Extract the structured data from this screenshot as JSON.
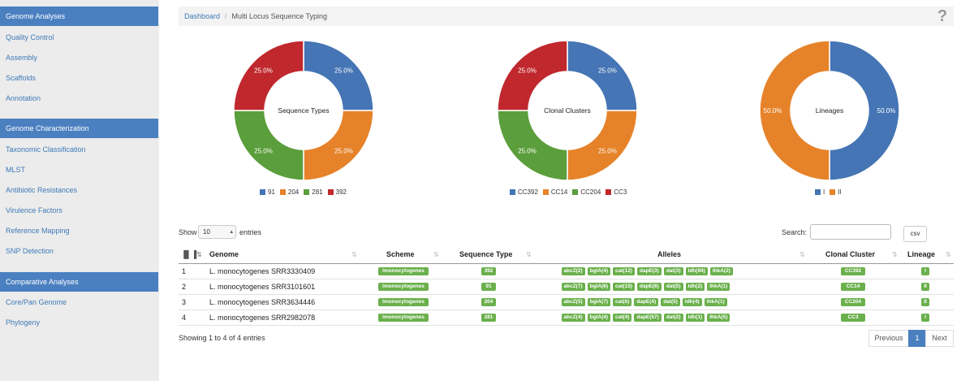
{
  "sidebar": {
    "sections": [
      {
        "title": "Genome Analyses",
        "items": [
          "Quality Control",
          "Assembly",
          "Scaffolds",
          "Annotation"
        ]
      },
      {
        "title": "Genome Characterization",
        "items": [
          "Taxonomic Classification",
          "MLST",
          "Antibiotic Resistances",
          "Virulence Factors",
          "Reference Mapping",
          "SNP Detection"
        ]
      },
      {
        "title": "Comparative Analyses",
        "items": [
          "Core/Pan Genome",
          "Phylogeny"
        ]
      }
    ]
  },
  "breadcrumb": {
    "home": "Dashboard",
    "separator": "/",
    "current": "Multi Locus Sequence Typing"
  },
  "help_icon": "question-mark-icon",
  "colors": {
    "blue": "#4575b4",
    "orange": "#e6832a",
    "green": "#5b9e3c",
    "red": "#c0282e",
    "accent": "#4a80c0",
    "badge": "#6ab04c"
  },
  "chart_data": [
    {
      "type": "pie",
      "title": "Sequence Types",
      "labels": [
        "91",
        "204",
        "281",
        "392"
      ],
      "values": [
        25.0,
        25.0,
        25.0,
        25.0
      ],
      "value_labels": [
        "25.0%",
        "25.0%",
        "25.0%",
        "25.0%"
      ],
      "colors": [
        "#4575b4",
        "#e6832a",
        "#5b9e3c",
        "#c0282e"
      ],
      "legend": "bottom"
    },
    {
      "type": "pie",
      "title": "Clonal Clusters",
      "labels": [
        "CC392",
        "CC14",
        "CC204",
        "CC3"
      ],
      "values": [
        25.0,
        25.0,
        25.0,
        25.0
      ],
      "value_labels": [
        "25.0%",
        "25.0%",
        "25.0%",
        "25.0%"
      ],
      "colors": [
        "#4575b4",
        "#e6832a",
        "#5b9e3c",
        "#c0282e"
      ],
      "legend": "bottom"
    },
    {
      "type": "pie",
      "title": "Lineages",
      "labels": [
        "I",
        "II"
      ],
      "values": [
        50.0,
        50.0
      ],
      "value_labels": [
        "50.0%",
        "50.0%"
      ],
      "colors": [
        "#4575b4",
        "#e6832a"
      ],
      "legend": "bottom"
    }
  ],
  "table_controls": {
    "show_label": "Show",
    "length_value": "10",
    "entries_label": "entries",
    "search_label": "Search:",
    "search_value": "",
    "csv_label": "csv"
  },
  "table": {
    "columns": [
      "Genome",
      "Scheme",
      "Sequence Type",
      "Alleles",
      "Clonal Cluster",
      "Lineage"
    ],
    "rows": [
      {
        "index": "1",
        "genome": "L. monocytogenes SRR3330409",
        "scheme": "lmonocytogenes",
        "st": "392",
        "alleles": [
          "abcZ(2)",
          "bglA(4)",
          "cat(12)",
          "dapE(3)",
          "dat(3)",
          "ldh(94)",
          "lhkA(2)"
        ],
        "cc": "CC392",
        "lineage": "I"
      },
      {
        "index": "2",
        "genome": "L. monocytogenes SRR3101601",
        "scheme": "lmonocytogenes",
        "st": "91",
        "alleles": [
          "abcZ(7)",
          "bglA(6)",
          "cat(15)",
          "dapE(6)",
          "dat(5)",
          "ldh(2)",
          "lhkA(1)"
        ],
        "cc": "CC14",
        "lineage": "II"
      },
      {
        "index": "3",
        "genome": "L. monocytogenes SRR3634446",
        "scheme": "lmonocytogenes",
        "st": "204",
        "alleles": [
          "abcZ(5)",
          "bglA(7)",
          "cat(6)",
          "dapE(4)",
          "dat(5)",
          "ldh(4)",
          "lhkA(1)"
        ],
        "cc": "CC204",
        "lineage": "II"
      },
      {
        "index": "4",
        "genome": "L. monocytogenes SRR2982078",
        "scheme": "lmonocytogenes",
        "st": "281",
        "alleles": [
          "abcZ(4)",
          "bglA(4)",
          "cat(4)",
          "dapE(57)",
          "dat(2)",
          "ldh(1)",
          "lhkA(5)"
        ],
        "cc": "CC3",
        "lineage": "I"
      }
    ]
  },
  "footer": {
    "info": "Showing 1 to 4 of 4 entries",
    "previous": "Previous",
    "current_page": "1",
    "next": "Next"
  }
}
